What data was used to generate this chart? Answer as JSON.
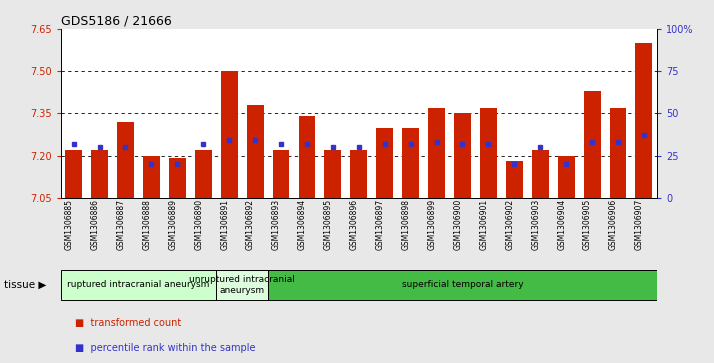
{
  "title": "GDS5186 / 21666",
  "samples": [
    "GSM1306885",
    "GSM1306886",
    "GSM1306887",
    "GSM1306888",
    "GSM1306889",
    "GSM1306890",
    "GSM1306891",
    "GSM1306892",
    "GSM1306893",
    "GSM1306894",
    "GSM1306895",
    "GSM1306896",
    "GSM1306897",
    "GSM1306898",
    "GSM1306899",
    "GSM1306900",
    "GSM1306901",
    "GSM1306902",
    "GSM1306903",
    "GSM1306904",
    "GSM1306905",
    "GSM1306906",
    "GSM1306907"
  ],
  "bar_values": [
    7.22,
    7.22,
    7.32,
    7.2,
    7.19,
    7.22,
    7.5,
    7.38,
    7.22,
    7.34,
    7.22,
    7.22,
    7.3,
    7.3,
    7.37,
    7.35,
    7.37,
    7.18,
    7.22,
    7.2,
    7.43,
    7.37,
    7.6
  ],
  "percentile_pct": [
    32,
    30,
    30,
    20,
    20,
    32,
    34,
    34,
    32,
    32,
    30,
    30,
    32,
    32,
    33,
    32,
    32,
    20,
    30,
    20,
    33,
    33,
    37
  ],
  "ymin": 7.05,
  "ymax": 7.65,
  "yticks": [
    7.05,
    7.2,
    7.35,
    7.5,
    7.65
  ],
  "right_yticks_pct": [
    0,
    25,
    50,
    75,
    100
  ],
  "grid_lines": [
    7.2,
    7.35,
    7.5
  ],
  "bar_color": "#cc2200",
  "percentile_color": "#3333cc",
  "groups": [
    {
      "label": "ruptured intracranial aneurysm",
      "start": 0,
      "end": 6,
      "color": "#ccffcc"
    },
    {
      "label": "unruptured intracranial\naneurysm",
      "start": 6,
      "end": 8,
      "color": "#ddfcdd"
    },
    {
      "label": "superficial temporal artery",
      "start": 8,
      "end": 23,
      "color": "#44bb44"
    }
  ],
  "legend_items": [
    {
      "label": "transformed count",
      "color": "#cc2200"
    },
    {
      "label": "percentile rank within the sample",
      "color": "#3333cc"
    }
  ],
  "bg_color": "#e8e8e8",
  "plot_bg": "#ffffff",
  "tissue_label": "tissue"
}
